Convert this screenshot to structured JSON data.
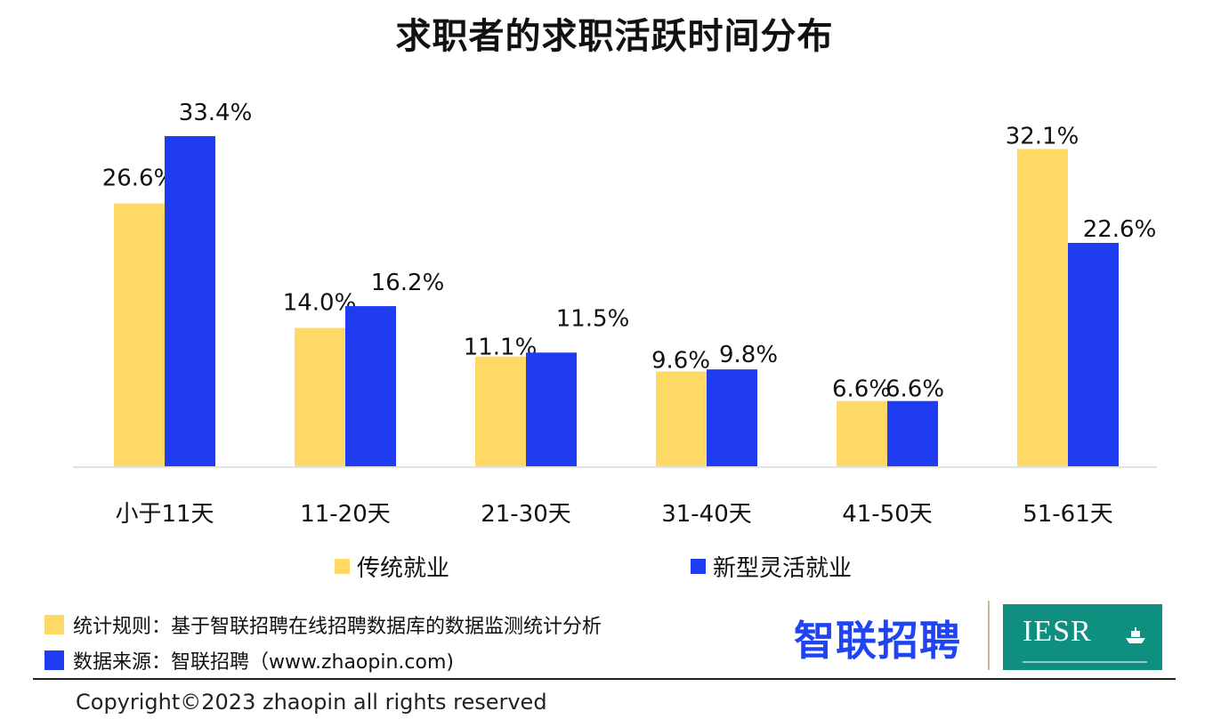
{
  "colors": {
    "traditional": "#ffd966",
    "flexible": "#1f3cf0",
    "axis": "#d9d9d9"
  },
  "legend": {
    "traditional": "传统就业",
    "flexible": "新型灵活就业"
  },
  "notes": {
    "rule": "统计规则：基于智联招聘在线招聘数据库的数据监测统计分析",
    "source": "数据来源：智联招聘（www.zhaopin.com)"
  },
  "logos": {
    "zhaopin": "智联招聘",
    "iesr": "IESR"
  },
  "copyright": "Copyright©2023 zhaopin all rights reserved",
  "chart_data": {
    "type": "bar",
    "title": "求职者的求职活跃时间分布",
    "categories": [
      "小于11天",
      "11-20天",
      "21-30天",
      "31-40天",
      "41-50天",
      "51-61天"
    ],
    "series": [
      {
        "name": "传统就业",
        "values": [
          26.6,
          14.0,
          11.1,
          9.6,
          6.6,
          32.1
        ],
        "labels": [
          "26.6%",
          "14.0%",
          "11.1%",
          "9.6%",
          "6.6%",
          "32.1%"
        ]
      },
      {
        "name": "新型灵活就业",
        "values": [
          33.4,
          16.2,
          11.5,
          9.8,
          6.6,
          22.6
        ],
        "labels": [
          "33.4%",
          "16.2%",
          "11.5%",
          "9.8%",
          "6.6%",
          "22.6%"
        ]
      }
    ],
    "ylim": [
      0,
      33.4
    ],
    "grid": false,
    "legend_position": "bottom"
  }
}
